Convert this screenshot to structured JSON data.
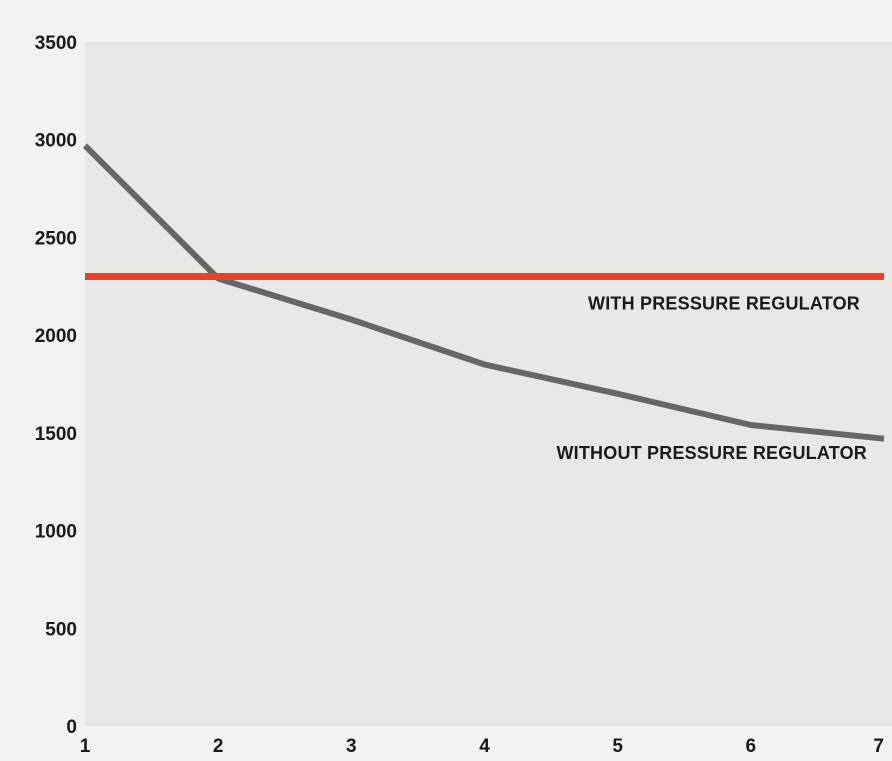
{
  "chart_data": {
    "type": "line",
    "title": "",
    "xlabel": "",
    "ylabel": "",
    "x": [
      1,
      2,
      3,
      4,
      5,
      6,
      7
    ],
    "xlim": [
      1,
      7
    ],
    "ylim": [
      0,
      3500
    ],
    "yticks": [
      0,
      500,
      1000,
      1500,
      2000,
      2500,
      3000,
      3500
    ],
    "xticks": [
      1,
      2,
      3,
      4,
      5,
      6,
      7
    ],
    "grid": false,
    "series": [
      {
        "name": "WITH PRESSURE REGULATOR",
        "color": "#e8432a",
        "x": [
          1,
          7
        ],
        "values": [
          2300,
          2300
        ]
      },
      {
        "name": "WITHOUT PRESSURE REGULATOR",
        "color": "#666666",
        "x": [
          1,
          2,
          3,
          4,
          5,
          6,
          7
        ],
        "values": [
          2970,
          2290,
          2080,
          1850,
          1700,
          1540,
          1470
        ]
      }
    ],
    "colors": {
      "page_background": "#f2f2f2",
      "plot_background": "#e8e8e6"
    }
  }
}
